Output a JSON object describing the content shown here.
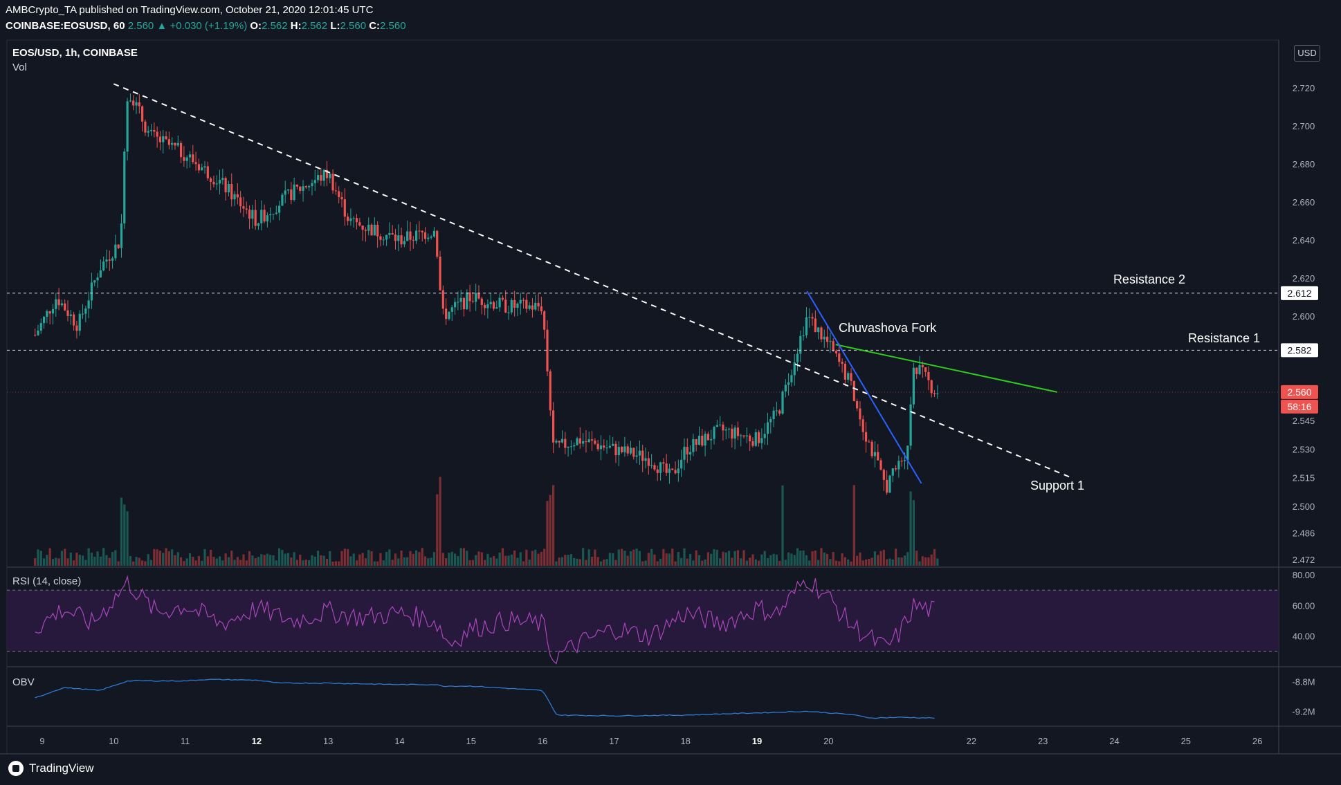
{
  "header": {
    "publisher_line": "AMBCrypto_TA published on TradingView.com, October 21, 2020 12:01:45 UTC",
    "symbol": "COINBASE:EOSUSD, 60",
    "last": "2.560",
    "change": "+0.030 (+1.19%)",
    "o_label": "O:",
    "o": "2.562",
    "h_label": "H:",
    "h": "2.562",
    "l_label": "L:",
    "l": "2.560",
    "c_label": "C:",
    "c": "2.560"
  },
  "panes": {
    "main_title": "EOS/USD, 1h, COINBASE",
    "vol_label": "Vol",
    "rsi_label": "RSI (14, close)",
    "obv_label": "OBV"
  },
  "currency_button": "USD",
  "footer": {
    "brand": "TradingView"
  },
  "colors": {
    "background": "#131722",
    "up": "#26a69a",
    "down": "#ef5350",
    "trend_white": "#ffffff",
    "trend_green": "#2ecc1f",
    "trend_blue": "#2962ff",
    "rsi_line": "#ab47bc",
    "rsi_band": "#2a1a3f",
    "obv_line": "#2e7bd6"
  },
  "chart_data": [
    {
      "type": "candlestick",
      "title": "EOS/USD, 1h, COINBASE",
      "x_ticks": [
        "9",
        "10",
        "11",
        "12",
        "13",
        "14",
        "15",
        "16",
        "17",
        "18",
        "19",
        "20",
        "22",
        "23",
        "24",
        "25",
        "26"
      ],
      "y_ticks": [
        "2.720",
        "2.700",
        "2.680",
        "2.660",
        "2.640",
        "2.620",
        "2.600",
        "2.582",
        "2.560",
        "2.545",
        "2.530",
        "2.515",
        "2.500",
        "2.486",
        "2.472"
      ],
      "ylim": [
        2.468,
        2.745
      ],
      "last_price": "2.560",
      "countdown": "58:16",
      "horizontal_levels": [
        {
          "name": "Resistance 2",
          "value": 2.612,
          "label": "2.612"
        },
        {
          "name": "Resistance 1",
          "value": 2.582,
          "label": "2.582"
        }
      ],
      "annotations": [
        "Resistance 2",
        "Resistance 1",
        "Chuvashova Fork",
        "Support 1"
      ],
      "trendlines": [
        {
          "color": "white",
          "style": "dashed",
          "from": {
            "x": "10",
            "y": 2.722
          },
          "to": {
            "x": "23.4",
            "y": 2.515
          }
        },
        {
          "color": "green",
          "style": "solid",
          "from": {
            "x": "20.1",
            "y": 2.585
          },
          "to": {
            "x": "23.2",
            "y": 2.56
          }
        },
        {
          "color": "blue",
          "style": "solid",
          "from": {
            "x": "19.7",
            "y": 2.613
          },
          "to": {
            "x": "21.3",
            "y": 2.512
          }
        }
      ],
      "price_path": [
        {
          "x": "8.9",
          "y": 2.59
        },
        {
          "x": "9.2",
          "y": 2.61
        },
        {
          "x": "9.5",
          "y": 2.595
        },
        {
          "x": "9.8",
          "y": 2.625
        },
        {
          "x": "10.1",
          "y": 2.64
        },
        {
          "x": "10.15",
          "y": 2.69
        },
        {
          "x": "10.2",
          "y": 2.72
        },
        {
          "x": "10.5",
          "y": 2.695
        },
        {
          "x": "11",
          "y": 2.685
        },
        {
          "x": "11.5",
          "y": 2.67
        },
        {
          "x": "12",
          "y": 2.65
        },
        {
          "x": "12.5",
          "y": 2.665
        },
        {
          "x": "13",
          "y": 2.675
        },
        {
          "x": "13.3",
          "y": 2.65
        },
        {
          "x": "14",
          "y": 2.64
        },
        {
          "x": "14.5",
          "y": 2.645
        },
        {
          "x": "14.6",
          "y": 2.6
        },
        {
          "x": "15",
          "y": 2.61
        },
        {
          "x": "15.5",
          "y": 2.605
        },
        {
          "x": "16",
          "y": 2.605
        },
        {
          "x": "16.15",
          "y": 2.53
        },
        {
          "x": "16.5",
          "y": 2.535
        },
        {
          "x": "17",
          "y": 2.53
        },
        {
          "x": "17.5",
          "y": 2.525
        },
        {
          "x": "17.8",
          "y": 2.515
        },
        {
          "x": "18",
          "y": 2.53
        },
        {
          "x": "18.5",
          "y": 2.54
        },
        {
          "x": "19",
          "y": 2.535
        },
        {
          "x": "19.3",
          "y": 2.55
        },
        {
          "x": "19.7",
          "y": 2.6
        },
        {
          "x": "20",
          "y": 2.585
        },
        {
          "x": "20.3",
          "y": 2.565
        },
        {
          "x": "20.5",
          "y": 2.54
        },
        {
          "x": "20.8",
          "y": 2.51
        },
        {
          "x": "21.1",
          "y": 2.53
        },
        {
          "x": "21.2",
          "y": 2.575
        },
        {
          "x": "21.5",
          "y": 2.56
        }
      ]
    },
    {
      "type": "line",
      "title": "RSI (14, close)",
      "y_ticks": [
        "80.00",
        "60.00",
        "40.00"
      ],
      "ylim": [
        20,
        85
      ],
      "bands": [
        70,
        30
      ],
      "points": [
        {
          "x": "8.9",
          "y": 45
        },
        {
          "x": "9.3",
          "y": 58
        },
        {
          "x": "9.7",
          "y": 48
        },
        {
          "x": "10.2",
          "y": 75
        },
        {
          "x": "10.6",
          "y": 55
        },
        {
          "x": "11",
          "y": 60
        },
        {
          "x": "11.5",
          "y": 48
        },
        {
          "x": "12",
          "y": 58
        },
        {
          "x": "12.5",
          "y": 50
        },
        {
          "x": "13",
          "y": 56
        },
        {
          "x": "13.5",
          "y": 52
        },
        {
          "x": "14",
          "y": 55
        },
        {
          "x": "14.5",
          "y": 50
        },
        {
          "x": "14.7",
          "y": 35
        },
        {
          "x": "15",
          "y": 45
        },
        {
          "x": "15.5",
          "y": 50
        },
        {
          "x": "16",
          "y": 48
        },
        {
          "x": "16.15",
          "y": 25
        },
        {
          "x": "16.5",
          "y": 35
        },
        {
          "x": "17",
          "y": 45
        },
        {
          "x": "17.5",
          "y": 40
        },
        {
          "x": "18",
          "y": 55
        },
        {
          "x": "18.5",
          "y": 48
        },
        {
          "x": "19",
          "y": 58
        },
        {
          "x": "19.3",
          "y": 55
        },
        {
          "x": "19.7",
          "y": 78
        },
        {
          "x": "20",
          "y": 65
        },
        {
          "x": "20.3",
          "y": 48
        },
        {
          "x": "20.6",
          "y": 38
        },
        {
          "x": "20.8",
          "y": 32
        },
        {
          "x": "21",
          "y": 42
        },
        {
          "x": "21.2",
          "y": 60
        },
        {
          "x": "21.5",
          "y": 56
        }
      ]
    },
    {
      "type": "line",
      "title": "OBV",
      "y_ticks": [
        "-8.8M",
        "-9.2M"
      ],
      "ylim": [
        -9.4,
        -8.6
      ],
      "points": [
        {
          "x": "8.9",
          "y": -9.02
        },
        {
          "x": "9.3",
          "y": -8.88
        },
        {
          "x": "9.8",
          "y": -8.92
        },
        {
          "x": "10.2",
          "y": -8.79
        },
        {
          "x": "11",
          "y": -8.79
        },
        {
          "x": "11.3",
          "y": -8.77
        },
        {
          "x": "12",
          "y": -8.78
        },
        {
          "x": "12.3",
          "y": -8.82
        },
        {
          "x": "13",
          "y": -8.82
        },
        {
          "x": "14",
          "y": -8.84
        },
        {
          "x": "14.5",
          "y": -8.84
        },
        {
          "x": "14.6",
          "y": -8.86
        },
        {
          "x": "15",
          "y": -8.86
        },
        {
          "x": "16",
          "y": -8.92
        },
        {
          "x": "16.2",
          "y": -9.25
        },
        {
          "x": "17",
          "y": -9.26
        },
        {
          "x": "18",
          "y": -9.25
        },
        {
          "x": "19",
          "y": -9.22
        },
        {
          "x": "19.7",
          "y": -9.2
        },
        {
          "x": "20.3",
          "y": -9.24
        },
        {
          "x": "20.6",
          "y": -9.29
        },
        {
          "x": "21",
          "y": -9.28
        },
        {
          "x": "21.5",
          "y": -9.29
        }
      ]
    }
  ]
}
